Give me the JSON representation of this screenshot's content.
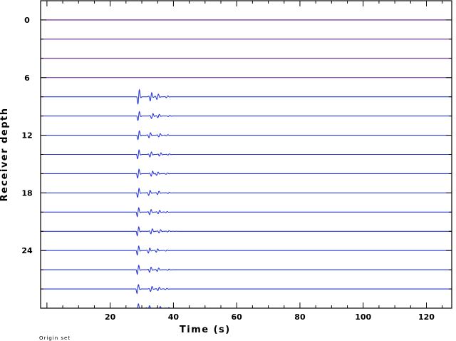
{
  "chart_data": {
    "type": "line",
    "title": "",
    "xlabel": "Time (s)",
    "ylabel": "Receiver depth",
    "xlim": [
      -2,
      128
    ],
    "ylim": [
      -2,
      30
    ],
    "x_ticks": [
      20,
      40,
      60,
      80,
      100,
      120
    ],
    "y_ticks": [
      0,
      6,
      12,
      18,
      24
    ],
    "y_axis_inverted": true,
    "grid": false,
    "colors": {
      "surface_trace": "#5c1a8a",
      "deep_trace": "#2a3ad8",
      "wavelet": "#0000ff",
      "axis": "#000000"
    },
    "series": [
      {
        "depth": 0,
        "arrival": null
      },
      {
        "depth": 2,
        "arrival": null
      },
      {
        "depth": 4,
        "arrival": null
      },
      {
        "depth": 6,
        "arrival": null
      },
      {
        "depth": 8,
        "arrival": 29.0
      },
      {
        "depth": 10,
        "arrival": 29.0
      },
      {
        "depth": 12,
        "arrival": 29.0
      },
      {
        "depth": 14,
        "arrival": 28.9
      },
      {
        "depth": 16,
        "arrival": 28.9
      },
      {
        "depth": 18,
        "arrival": 28.9
      },
      {
        "depth": 20,
        "arrival": 28.8
      },
      {
        "depth": 22,
        "arrival": 28.8
      },
      {
        "depth": 24,
        "arrival": 28.8
      },
      {
        "depth": 26,
        "arrival": 28.8
      },
      {
        "depth": 28,
        "arrival": 28.7
      },
      {
        "depth": 30,
        "arrival": 28.7
      }
    ]
  },
  "footer": {
    "text": "Origin set"
  }
}
